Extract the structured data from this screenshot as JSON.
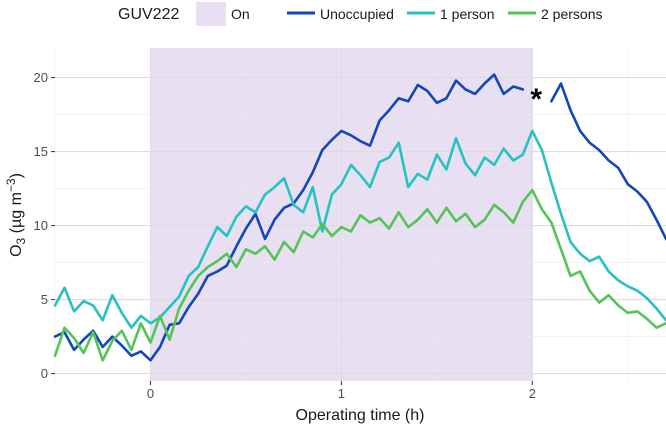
{
  "chart_data": {
    "type": "line",
    "xlabel": "Operating time (h)",
    "ylabel": "O",
    "ylabel_sub": "3",
    "ylabel_unit_prefix": " (µg m",
    "ylabel_unit_sup": "−3",
    "ylabel_unit_suffix": ")",
    "xlim": [
      -0.5,
      2.7
    ],
    "ylim": [
      -0.5,
      22
    ],
    "x_ticks": [
      0,
      1,
      2
    ],
    "y_ticks": [
      0,
      5,
      10,
      15,
      20
    ],
    "grid": true,
    "legend_position": "top",
    "shading": {
      "legend_title": "GUV222",
      "label": "On",
      "x_start": 0,
      "x_end": 2,
      "color": "#e8e0f2"
    },
    "annotation": {
      "text": "*",
      "x": 2.02,
      "y": 18.7
    },
    "series_colors": [
      "#1446b8",
      "#26c2c2",
      "#55c456"
    ],
    "series": [
      {
        "name": "Unoccupied",
        "x": [
          -0.5,
          -0.45,
          -0.4,
          -0.35,
          -0.3,
          -0.25,
          -0.2,
          -0.15,
          -0.1,
          -0.05,
          0,
          0.05,
          0.1,
          0.15,
          0.2,
          0.25,
          0.3,
          0.35,
          0.4,
          0.45,
          0.5,
          0.55,
          0.6,
          0.65,
          0.7,
          0.75,
          0.8,
          0.85,
          0.9,
          0.95,
          1,
          1.05,
          1.1,
          1.15,
          1.2,
          1.25,
          1.3,
          1.35,
          1.4,
          1.45,
          1.5,
          1.55,
          1.6,
          1.65,
          1.7,
          1.75,
          1.8,
          1.85,
          1.9,
          1.95
        ],
        "y": [
          2.5,
          2.8,
          1.6,
          2.3,
          2.9,
          1.8,
          2.5,
          1.9,
          1.2,
          1.5,
          0.9,
          1.8,
          3.3,
          3.4,
          4.5,
          5.4,
          6.6,
          6.9,
          7.3,
          8.6,
          9.8,
          10.8,
          9.1,
          10.4,
          11.2,
          11.5,
          12.4,
          13.6,
          15.1,
          15.8,
          16.4,
          16.1,
          15.7,
          15.4,
          17.1,
          17.8,
          18.6,
          18.4,
          19.5,
          19.1,
          18.3,
          18.6,
          19.8,
          19.2,
          18.9,
          19.6,
          20.2,
          18.9,
          19.4,
          19.2
        ]
      },
      {
        "name": "Unoccupied",
        "x": [
          2.1,
          2.15,
          2.2,
          2.25,
          2.3,
          2.35,
          2.4,
          2.45,
          2.5,
          2.55,
          2.6,
          2.65,
          2.7
        ],
        "y": [
          18.4,
          19.6,
          17.8,
          16.4,
          15.6,
          15.1,
          14.4,
          13.9,
          12.8,
          12.3,
          11.6,
          10.4,
          9.1
        ]
      },
      {
        "name": "1 person",
        "x": [
          -0.5,
          -0.45,
          -0.4,
          -0.35,
          -0.3,
          -0.25,
          -0.2,
          -0.15,
          -0.1,
          -0.05,
          0,
          0.05,
          0.1,
          0.15,
          0.2,
          0.25,
          0.3,
          0.35,
          0.4,
          0.45,
          0.5,
          0.55,
          0.6,
          0.65,
          0.7,
          0.75,
          0.8,
          0.85,
          0.9,
          0.95,
          1,
          1.05,
          1.1,
          1.15,
          1.2,
          1.25,
          1.3,
          1.35,
          1.4,
          1.45,
          1.5,
          1.55,
          1.6,
          1.65,
          1.7,
          1.75,
          1.8,
          1.85,
          1.9,
          1.95,
          2,
          2.05,
          2.1,
          2.15,
          2.2,
          2.25,
          2.3,
          2.35,
          2.4,
          2.45,
          2.5,
          2.55,
          2.6,
          2.65,
          2.7
        ],
        "y": [
          4.6,
          5.8,
          4.2,
          4.9,
          4.6,
          3.6,
          5.3,
          4.1,
          3.1,
          3.9,
          3.4,
          3.8,
          4.5,
          5.2,
          6.6,
          7.2,
          8.6,
          9.9,
          9.3,
          10.6,
          11.3,
          10.9,
          12.1,
          12.6,
          13.2,
          11.4,
          10.9,
          12.6,
          9.6,
          12.1,
          12.8,
          14.1,
          13.4,
          12.6,
          14.3,
          14.6,
          15.6,
          12.6,
          13.5,
          13.1,
          14.8,
          13.8,
          15.9,
          14.2,
          13.4,
          14.6,
          14.1,
          15.2,
          14.4,
          14.8,
          16.4,
          15.1,
          12.9,
          10.8,
          8.9,
          8.1,
          7.6,
          7.9,
          6.9,
          6.3,
          5.9,
          5.6,
          5.1,
          4.4,
          3.6
        ]
      },
      {
        "name": "2 persons",
        "x": [
          -0.5,
          -0.45,
          -0.4,
          -0.35,
          -0.3,
          -0.25,
          -0.2,
          -0.15,
          -0.1,
          -0.05,
          0,
          0.05,
          0.1,
          0.15,
          0.2,
          0.25,
          0.3,
          0.35,
          0.4,
          0.45,
          0.5,
          0.55,
          0.6,
          0.65,
          0.7,
          0.75,
          0.8,
          0.85,
          0.9,
          0.95,
          1,
          1.05,
          1.1,
          1.15,
          1.2,
          1.25,
          1.3,
          1.35,
          1.4,
          1.45,
          1.5,
          1.55,
          1.6,
          1.65,
          1.7,
          1.75,
          1.8,
          1.85,
          1.9,
          1.95,
          2,
          2.05,
          2.1,
          2.15,
          2.2,
          2.25,
          2.3,
          2.35,
          2.4,
          2.45,
          2.5,
          2.55,
          2.6,
          2.65,
          2.7
        ],
        "y": [
          1.2,
          3.1,
          2.4,
          1.4,
          2.8,
          0.9,
          2.2,
          2.9,
          1.6,
          3.4,
          2.1,
          3.9,
          2.3,
          4.4,
          5.6,
          6.6,
          7.2,
          7.6,
          8.1,
          7.2,
          8.4,
          8.1,
          8.6,
          7.7,
          8.9,
          8.2,
          9.6,
          9.2,
          10.1,
          9.3,
          9.9,
          9.6,
          10.7,
          10.2,
          10.5,
          9.8,
          10.9,
          9.9,
          10.4,
          11.1,
          10.2,
          11.2,
          10.3,
          10.8,
          9.9,
          10.4,
          11.4,
          10.9,
          10.2,
          11.6,
          12.4,
          11.1,
          10.2,
          8.4,
          6.6,
          6.9,
          5.6,
          4.8,
          5.3,
          4.6,
          4.1,
          4.2,
          3.7,
          3.1,
          3.4
        ]
      }
    ]
  },
  "legend": {
    "title": "GUV222",
    "shade_label": "On",
    "entries": [
      "Unoccupied",
      "1 person",
      "2 persons"
    ]
  }
}
